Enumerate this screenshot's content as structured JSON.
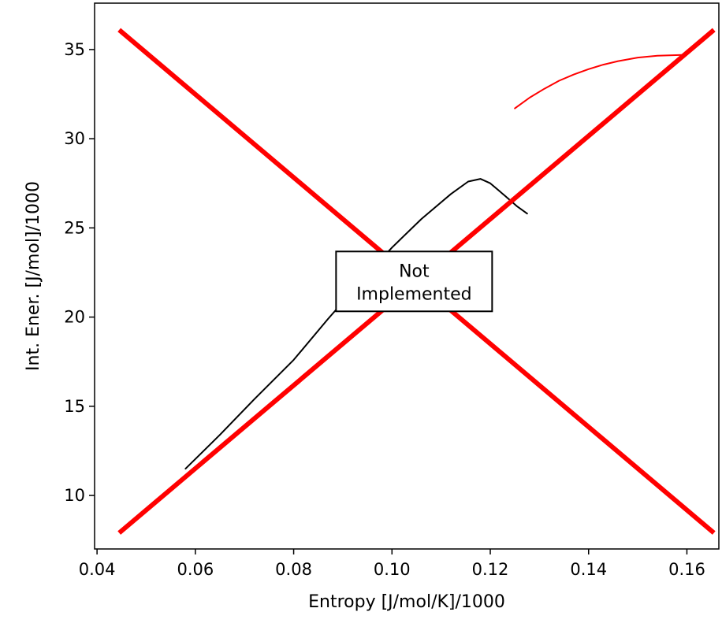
{
  "chart_data": {
    "type": "line",
    "xlabel": "Entropy [J/mol/K]/1000",
    "ylabel": "Int. Ener. [J/mol]/1000",
    "xlim": [
      0.0395,
      0.1665
    ],
    "ylim": [
      7.0,
      37.6
    ],
    "xticks": [
      {
        "value": 0.04,
        "label": "0.04"
      },
      {
        "value": 0.06,
        "label": "0.06"
      },
      {
        "value": 0.08,
        "label": "0.08"
      },
      {
        "value": 0.1,
        "label": "0.10"
      },
      {
        "value": 0.12,
        "label": "0.12"
      },
      {
        "value": 0.14,
        "label": "0.14"
      },
      {
        "value": 0.16,
        "label": "0.16"
      }
    ],
    "yticks": [
      {
        "value": 10,
        "label": "10"
      },
      {
        "value": 15,
        "label": "15"
      },
      {
        "value": 20,
        "label": "20"
      },
      {
        "value": 25,
        "label": "25"
      },
      {
        "value": 30,
        "label": "30"
      },
      {
        "value": 35,
        "label": "35"
      }
    ],
    "grid": false,
    "series": [
      {
        "color": "#000000",
        "width": 2,
        "x": [
          0.058,
          0.065,
          0.072,
          0.08,
          0.087,
          0.094,
          0.1,
          0.106,
          0.112,
          0.1155,
          0.118,
          0.12,
          0.123,
          0.1255,
          0.1275
        ],
        "y": [
          11.5,
          13.4,
          15.4,
          17.6,
          19.9,
          22.1,
          23.9,
          25.5,
          26.9,
          27.6,
          27.75,
          27.5,
          26.8,
          26.2,
          25.8
        ]
      },
      {
        "color": "#ff0000",
        "width": 2,
        "x": [
          0.125,
          0.128,
          0.131,
          0.134,
          0.137,
          0.14,
          0.143,
          0.146,
          0.15,
          0.154,
          0.159
        ],
        "y": [
          31.7,
          32.3,
          32.8,
          33.25,
          33.6,
          33.9,
          34.15,
          34.35,
          34.55,
          34.65,
          34.7
        ]
      }
    ],
    "cross_lines": [
      {
        "x": [
          0.0445,
          0.1655
        ],
        "y": [
          7.9,
          36.1
        ],
        "color": "#ff0000",
        "width": 6
      },
      {
        "x": [
          0.0445,
          0.1655
        ],
        "y": [
          36.1,
          7.9
        ],
        "color": "#ff0000",
        "width": 6
      }
    ],
    "annotation": {
      "lines": [
        "Not",
        "Implemented"
      ],
      "x": 0.1045,
      "y": 22.0
    }
  }
}
